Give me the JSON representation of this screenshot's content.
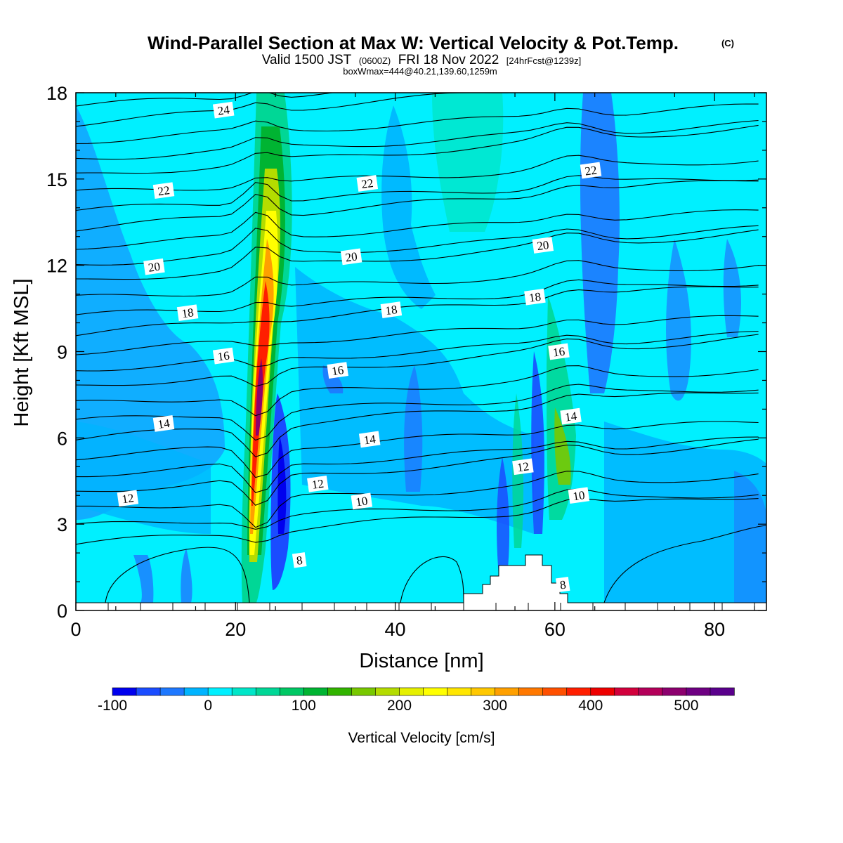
{
  "header": {
    "title": "Wind-Parallel Section at Max W: Vertical Velocity & Pot.Temp.",
    "title_mark": "(C)",
    "valid_prefix": "Valid 1500 JST",
    "valid_utc": "(0600Z)",
    "valid_date": "FRI 18 Nov 2022",
    "forecast_info": "[24hrFcst@1239z]",
    "box_info": "boxWmax=444@40.21,139.60,1259m"
  },
  "chart_data": {
    "type": "heatmap",
    "overlay": "contour",
    "xlabel": "Distance [nm]",
    "ylabel": "Height [Kft MSL]",
    "xlim": [
      0,
      86.5
    ],
    "ylim": [
      0,
      18
    ],
    "xticks": [
      0,
      20,
      40,
      60,
      80
    ],
    "yticks": [
      0,
      3,
      6,
      9,
      12,
      15,
      18
    ],
    "colorbar": {
      "label": "Vertical Velocity [cm/s]",
      "min": -100,
      "max": 550,
      "step": 25,
      "tick_values": [
        -100,
        0,
        100,
        200,
        300,
        400,
        500
      ],
      "tick_labels": [
        "-100",
        "0",
        "100",
        "200",
        "300",
        "400",
        "500"
      ],
      "colors": [
        "#0000ee",
        "#1a4cff",
        "#1e78ff",
        "#00b4ff",
        "#00f0ff",
        "#00e6c8",
        "#00d796",
        "#00c864",
        "#00b432",
        "#32b400",
        "#78c800",
        "#b4dc00",
        "#e6f000",
        "#ffff00",
        "#ffe600",
        "#ffc800",
        "#ffa000",
        "#ff7800",
        "#ff5000",
        "#ff1e00",
        "#ee0000",
        "#d2003c",
        "#b4005a",
        "#8c006e",
        "#6e0082",
        "#5a008c"
      ]
    },
    "contour_labels": [
      {
        "text": "24",
        "x": 18.5,
        "y": 17.4
      },
      {
        "text": "22",
        "x": 11,
        "y": 14.6
      },
      {
        "text": "22",
        "x": 36.5,
        "y": 14.85
      },
      {
        "text": "22",
        "x": 64.5,
        "y": 15.3
      },
      {
        "text": "20",
        "x": 9.8,
        "y": 11.95
      },
      {
        "text": "20",
        "x": 34.5,
        "y": 12.3
      },
      {
        "text": "20",
        "x": 58.5,
        "y": 12.7
      },
      {
        "text": "18",
        "x": 14,
        "y": 10.35
      },
      {
        "text": "18",
        "x": 39.5,
        "y": 10.45
      },
      {
        "text": "18",
        "x": 57.5,
        "y": 10.9
      },
      {
        "text": "16",
        "x": 18.5,
        "y": 8.85
      },
      {
        "text": "16",
        "x": 32.8,
        "y": 8.35
      },
      {
        "text": "16",
        "x": 60.5,
        "y": 9.0
      },
      {
        "text": "14",
        "x": 11,
        "y": 6.5
      },
      {
        "text": "14",
        "x": 36.8,
        "y": 5.95
      },
      {
        "text": "14",
        "x": 62,
        "y": 6.75
      },
      {
        "text": "12",
        "x": 6.5,
        "y": 3.9
      },
      {
        "text": "12",
        "x": 30.3,
        "y": 4.4
      },
      {
        "text": "12",
        "x": 56,
        "y": 5.0
      },
      {
        "text": "10",
        "x": 35.8,
        "y": 3.8
      },
      {
        "text": "10",
        "x": 63,
        "y": 4.0
      },
      {
        "text": "8",
        "x": 28,
        "y": 1.75
      },
      {
        "text": "8",
        "x": 61,
        "y": 0.9
      }
    ]
  }
}
